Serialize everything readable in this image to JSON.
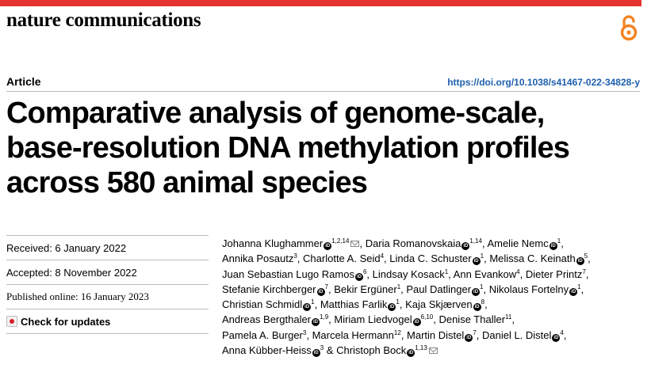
{
  "header": {
    "journal": "nature communications",
    "accent_color": "#e3342f",
    "open_access_icon": "open-access-icon"
  },
  "article": {
    "type": "Article",
    "doi": "https://doi.org/10.1038/s41467-022-34828-y",
    "title_lines": [
      "Comparative analysis of genome-scale,",
      "base-resolution DNA methylation profiles",
      "across 580 animal species"
    ]
  },
  "dates": {
    "received": "Received: 6 January 2022",
    "accepted": "Accepted: 8 November 2022",
    "published": "Published online: 16 January 2023",
    "check_updates": "Check for updates"
  },
  "author_lines": [
    [
      {
        "name": "Johanna Klughammer",
        "aff": "1,2,14",
        "orcid": true,
        "mail": true,
        "sep": ", "
      },
      {
        "name": "Daria Romanovskaia",
        "aff": "1,14",
        "orcid": true,
        "sep": ", "
      },
      {
        "name": "Amelie Nemc",
        "aff": "1",
        "orcid": true,
        "sep": ","
      }
    ],
    [
      {
        "name": "Annika Posautz",
        "aff": "3",
        "orcid": false,
        "sep": ", "
      },
      {
        "name": "Charlotte A. Seid",
        "aff": "4",
        "orcid": false,
        "sep": ", "
      },
      {
        "name": "Linda C. Schuster",
        "aff": "1",
        "orcid": true,
        "sep": ", "
      },
      {
        "name": "Melissa C. Keinath",
        "aff": "5",
        "orcid": true,
        "sep": ","
      }
    ],
    [
      {
        "name": "Juan Sebastian Lugo Ramos",
        "aff": "6",
        "orcid": true,
        "sep": ", "
      },
      {
        "name": "Lindsay Kosack",
        "aff": "1",
        "orcid": false,
        "sep": ", "
      },
      {
        "name": "Ann Evankow",
        "aff": "4",
        "orcid": false,
        "sep": ", "
      },
      {
        "name": "Dieter Printz",
        "aff": "7",
        "orcid": false,
        "sep": ","
      }
    ],
    [
      {
        "name": "Stefanie Kirchberger",
        "aff": "7",
        "orcid": true,
        "sep": ", "
      },
      {
        "name": "Bekir Ergüner",
        "aff": "1",
        "orcid": false,
        "sep": ", "
      },
      {
        "name": "Paul Datlinger",
        "aff": "1",
        "orcid": true,
        "sep": ", "
      },
      {
        "name": "Nikolaus Fortelny",
        "aff": "1",
        "orcid": true,
        "sep": ","
      }
    ],
    [
      {
        "name": "Christian Schmidl",
        "aff": "1",
        "orcid": true,
        "sep": ", "
      },
      {
        "name": "Matthias Farlik",
        "aff": "1",
        "orcid": true,
        "sep": ", "
      },
      {
        "name": "Kaja Skjærven",
        "aff": "8",
        "orcid": true,
        "sep": ","
      }
    ],
    [
      {
        "name": "Andreas Bergthaler",
        "aff": "1,9",
        "orcid": true,
        "sep": ", "
      },
      {
        "name": "Miriam Liedvogel",
        "aff": "6,10",
        "orcid": true,
        "sep": ", "
      },
      {
        "name": "Denise Thaller",
        "aff": "11",
        "orcid": false,
        "sep": ","
      }
    ],
    [
      {
        "name": "Pamela A. Burger",
        "aff": "3",
        "orcid": false,
        "sep": ", "
      },
      {
        "name": "Marcela Hermann",
        "aff": "12",
        "orcid": false,
        "sep": ", "
      },
      {
        "name": "Martin Distel",
        "aff": "7",
        "orcid": true,
        "sep": ", "
      },
      {
        "name": "Daniel L. Distel",
        "aff": "4",
        "orcid": true,
        "sep": ","
      }
    ],
    [
      {
        "name": "Anna Kübber-Heiss",
        "aff": "3",
        "orcid": true,
        "sep": " & "
      },
      {
        "name": "Christoph Bock",
        "aff": "1,13",
        "orcid": true,
        "mail": true,
        "sep": ""
      }
    ]
  ]
}
